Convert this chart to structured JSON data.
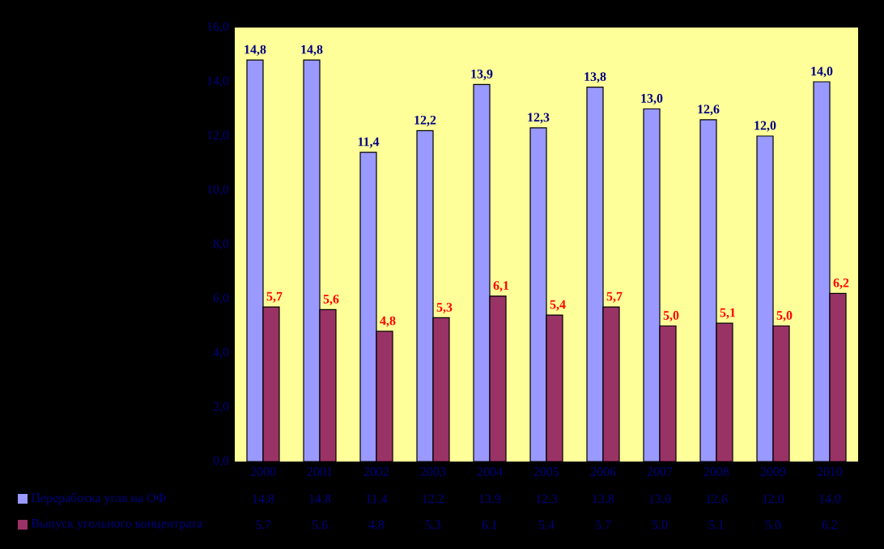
{
  "chart_data": {
    "type": "bar",
    "categories": [
      "2000",
      "2001",
      "2002",
      "2003",
      "2004",
      "2005",
      "2006",
      "2007",
      "2008",
      "2009",
      "2010"
    ],
    "series": [
      {
        "name": "Переработка угля на ОФ",
        "color": "#9999ff",
        "values": [
          14.8,
          14.8,
          11.4,
          12.2,
          13.9,
          12.3,
          13.8,
          13.0,
          12.6,
          12.0,
          14.0
        ],
        "value_labels": [
          "14,8",
          "14,8",
          "11,4",
          "12,2",
          "13,9",
          "12,3",
          "13,8",
          "13,0",
          "12,6",
          "12,0",
          "14,0"
        ]
      },
      {
        "name": "Выпуск угольного концентрата",
        "color": "#993366",
        "values": [
          5.7,
          5.6,
          4.8,
          5.3,
          6.1,
          5.4,
          5.7,
          5.0,
          5.1,
          5.0,
          6.2
        ],
        "value_labels": [
          "5,7",
          "5,6",
          "4,8",
          "5,3",
          "6,1",
          "5,4",
          "5,7",
          "5,0",
          "5,1",
          "5,0",
          "6,2"
        ]
      }
    ],
    "ylim": [
      0,
      16
    ],
    "yticks": [
      {
        "value": 0,
        "label": "0,0"
      },
      {
        "value": 2,
        "label": "2,0"
      },
      {
        "value": 4,
        "label": "4,0"
      },
      {
        "value": 6,
        "label": "6,0"
      },
      {
        "value": 8,
        "label": "8,0"
      },
      {
        "value": 10,
        "label": "10,0"
      },
      {
        "value": 12,
        "label": "12,0"
      },
      {
        "value": 14,
        "label": "14,0"
      },
      {
        "value": 16,
        "label": "16,0"
      }
    ],
    "legend": "bottom left",
    "annotations": [
      "14.8",
      "14.8",
      "11.4",
      "12.2",
      "13.9",
      "12.3",
      "13.8",
      "13.0",
      "12.6",
      "12.0",
      "14.0",
      "5.7",
      "5.6",
      "4.8",
      "5.3",
      "6.1",
      "5.4",
      "5.7",
      "5.0",
      "5.1",
      "5.0",
      "6.2"
    ]
  }
}
